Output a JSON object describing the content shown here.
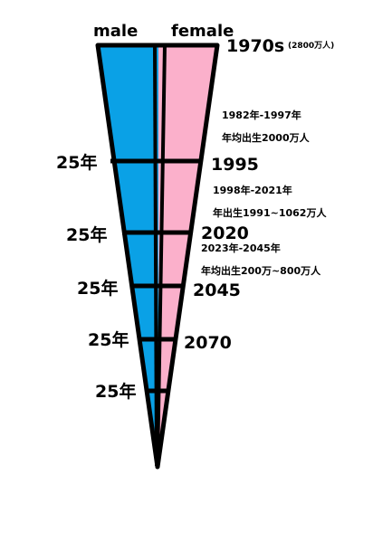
{
  "colors": {
    "male": "#0aa1e6",
    "female": "#fbb0cb",
    "outline": "#000000"
  },
  "header": {
    "male_label": "male",
    "female_label": "female"
  },
  "top_label": {
    "year": "1970s",
    "note": "(2800万人)"
  },
  "year_labels": [
    "1995",
    "2020",
    "2045",
    "2070"
  ],
  "interval_labels": [
    "25年",
    "25年",
    "25年",
    "25年",
    "25年"
  ],
  "annotations": [
    {
      "line1": "1982年-1997年",
      "line2": "年均出生2000万人"
    },
    {
      "line1": "1998年-2021年",
      "line2": "年出生1991~1062万人"
    },
    {
      "line1": "2023年-2045年",
      "line2": "年均出生200万~800万人"
    }
  ]
}
